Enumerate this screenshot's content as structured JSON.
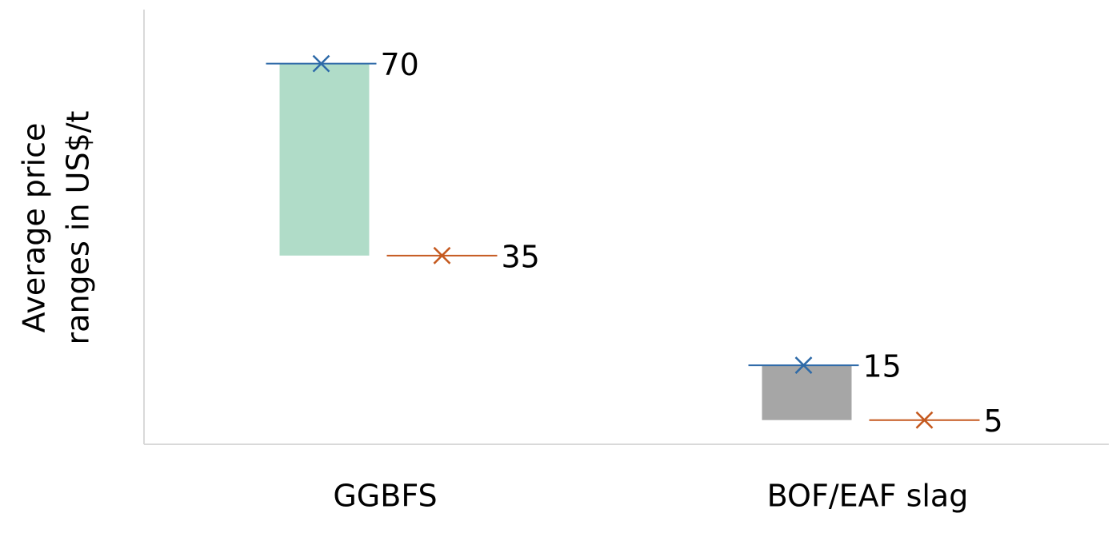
{
  "chart_data": {
    "type": "floating_bar",
    "ylabel": [
      "Average price",
      "ranges in US$/t"
    ],
    "categories": [
      "GGBFS",
      "BOF/EAF slag"
    ],
    "bar_colors": [
      "#b0dcc8",
      "#a6a6a6"
    ],
    "high": {
      "values": [
        70,
        15
      ],
      "color": "#2e6aa8"
    },
    "low": {
      "values": [
        35,
        5
      ],
      "color": "#c55a20"
    },
    "ylim": [
      0,
      80
    ]
  }
}
